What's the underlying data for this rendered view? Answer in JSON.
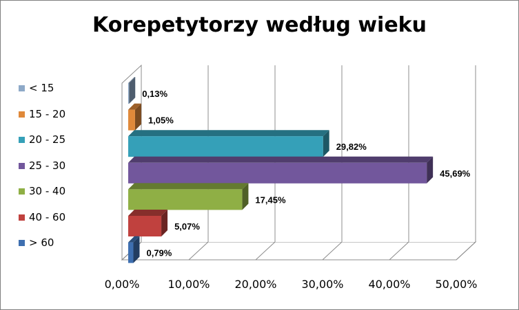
{
  "chart_data": {
    "type": "bar",
    "orientation": "horizontal",
    "style": "3d-clustered",
    "title": "Korepetytorzy według wieku",
    "xlabel": "",
    "ylabel": "",
    "xlim": [
      0,
      50
    ],
    "x_ticks": [
      "0,00%",
      "10,00%",
      "20,00%",
      "30,00%",
      "40,00%",
      "50,00%"
    ],
    "grid": true,
    "legend_position": "left",
    "series": [
      {
        "name": "< 15",
        "value": 0.13,
        "label": "0,13%",
        "color": "#8EA9C8"
      },
      {
        "name": "15 - 20",
        "value": 1.05,
        "label": "1,05%",
        "color": "#E0893A"
      },
      {
        "name": "20 - 25",
        "value": 29.82,
        "label": "29,82%",
        "color": "#35A0B8"
      },
      {
        "name": "25 - 30",
        "value": 45.69,
        "label": "45,69%",
        "color": "#72579C"
      },
      {
        "name": "30 - 40",
        "value": 17.45,
        "label": "17,45%",
        "color": "#8FAF45"
      },
      {
        "name": "40 - 60",
        "value": 5.07,
        "label": "5,07%",
        "color": "#C0413E"
      },
      {
        "name": "> 60",
        "value": 0.79,
        "label": "0,79%",
        "color": "#3E6FB0"
      }
    ]
  }
}
